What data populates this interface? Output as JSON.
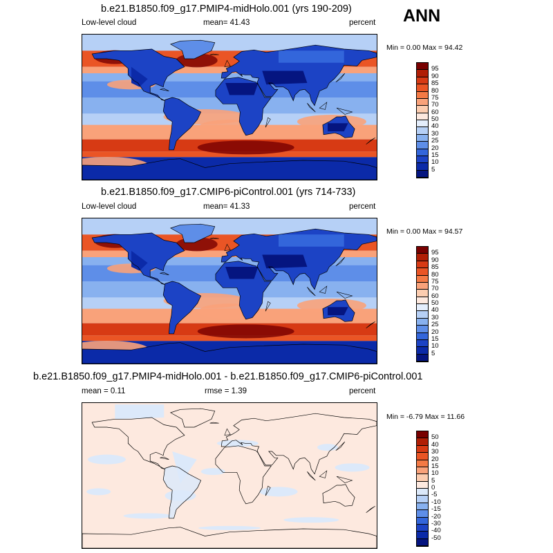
{
  "ann_label": "ANN",
  "panels": [
    {
      "title": "b.e21.B1850.f09_g17.PMIP4-midHolo.001 (yrs 190-209)",
      "left_label": "Low-level cloud",
      "center_label": "mean=  41.43",
      "right_label": "percent",
      "minmax": "Min =  0.00 Max =  94.42",
      "field": "cloud",
      "colorbar": {
        "labels": [
          "95",
          "90",
          "85",
          "80",
          "75",
          "70",
          "60",
          "50",
          "40",
          "30",
          "25",
          "20",
          "15",
          "10",
          "5"
        ],
        "colors": [
          "#780000",
          "#b01e05",
          "#d73a14",
          "#ea5525",
          "#f47a45",
          "#f9a27a",
          "#fccdb0",
          "#fde9df",
          "#e4eefc",
          "#b6d0f6",
          "#88b1ef",
          "#5e8ee8",
          "#3366db",
          "#1c43c5",
          "#0b2aa8",
          "#051580"
        ]
      }
    },
    {
      "title": "b.e21.B1850.f09_g17.CMIP6-piControl.001 (yrs 714-733)",
      "left_label": "Low-level cloud",
      "center_label": "mean=  41.33",
      "right_label": "percent",
      "minmax": "Min =  0.00 Max =  94.57",
      "field": "cloud",
      "colorbar": {
        "labels": [
          "95",
          "90",
          "85",
          "80",
          "75",
          "70",
          "60",
          "50",
          "40",
          "30",
          "25",
          "20",
          "15",
          "10",
          "5"
        ],
        "colors": [
          "#780000",
          "#b01e05",
          "#d73a14",
          "#ea5525",
          "#f47a45",
          "#f9a27a",
          "#fccdb0",
          "#fde9df",
          "#e4eefc",
          "#b6d0f6",
          "#88b1ef",
          "#5e8ee8",
          "#3366db",
          "#1c43c5",
          "#0b2aa8",
          "#051580"
        ]
      }
    },
    {
      "title": "b.e21.B1850.f09_g17.PMIP4-midHolo.001 - b.e21.B1850.f09_g17.CMIP6-piControl.001",
      "left_label": "mean =   0.11",
      "center_label": "rmse =   1.39",
      "right_label": "percent",
      "minmax": "Min =  -6.79 Max =  11.66",
      "field": "diff",
      "colorbar": {
        "labels": [
          "50",
          "40",
          "30",
          "20",
          "15",
          "10",
          "5",
          "0",
          "-5",
          "-10",
          "-15",
          "-20",
          "-30",
          "-40",
          "-50"
        ],
        "colors": [
          "#780000",
          "#b01e05",
          "#d73a14",
          "#ea5525",
          "#f47a45",
          "#f9a27a",
          "#fccdb0",
          "#fde9df",
          "#dce9fa",
          "#b6d0f6",
          "#88b1ef",
          "#5e8ee8",
          "#3366db",
          "#1c43c5",
          "#0b2aa8",
          "#051580"
        ]
      }
    }
  ]
}
